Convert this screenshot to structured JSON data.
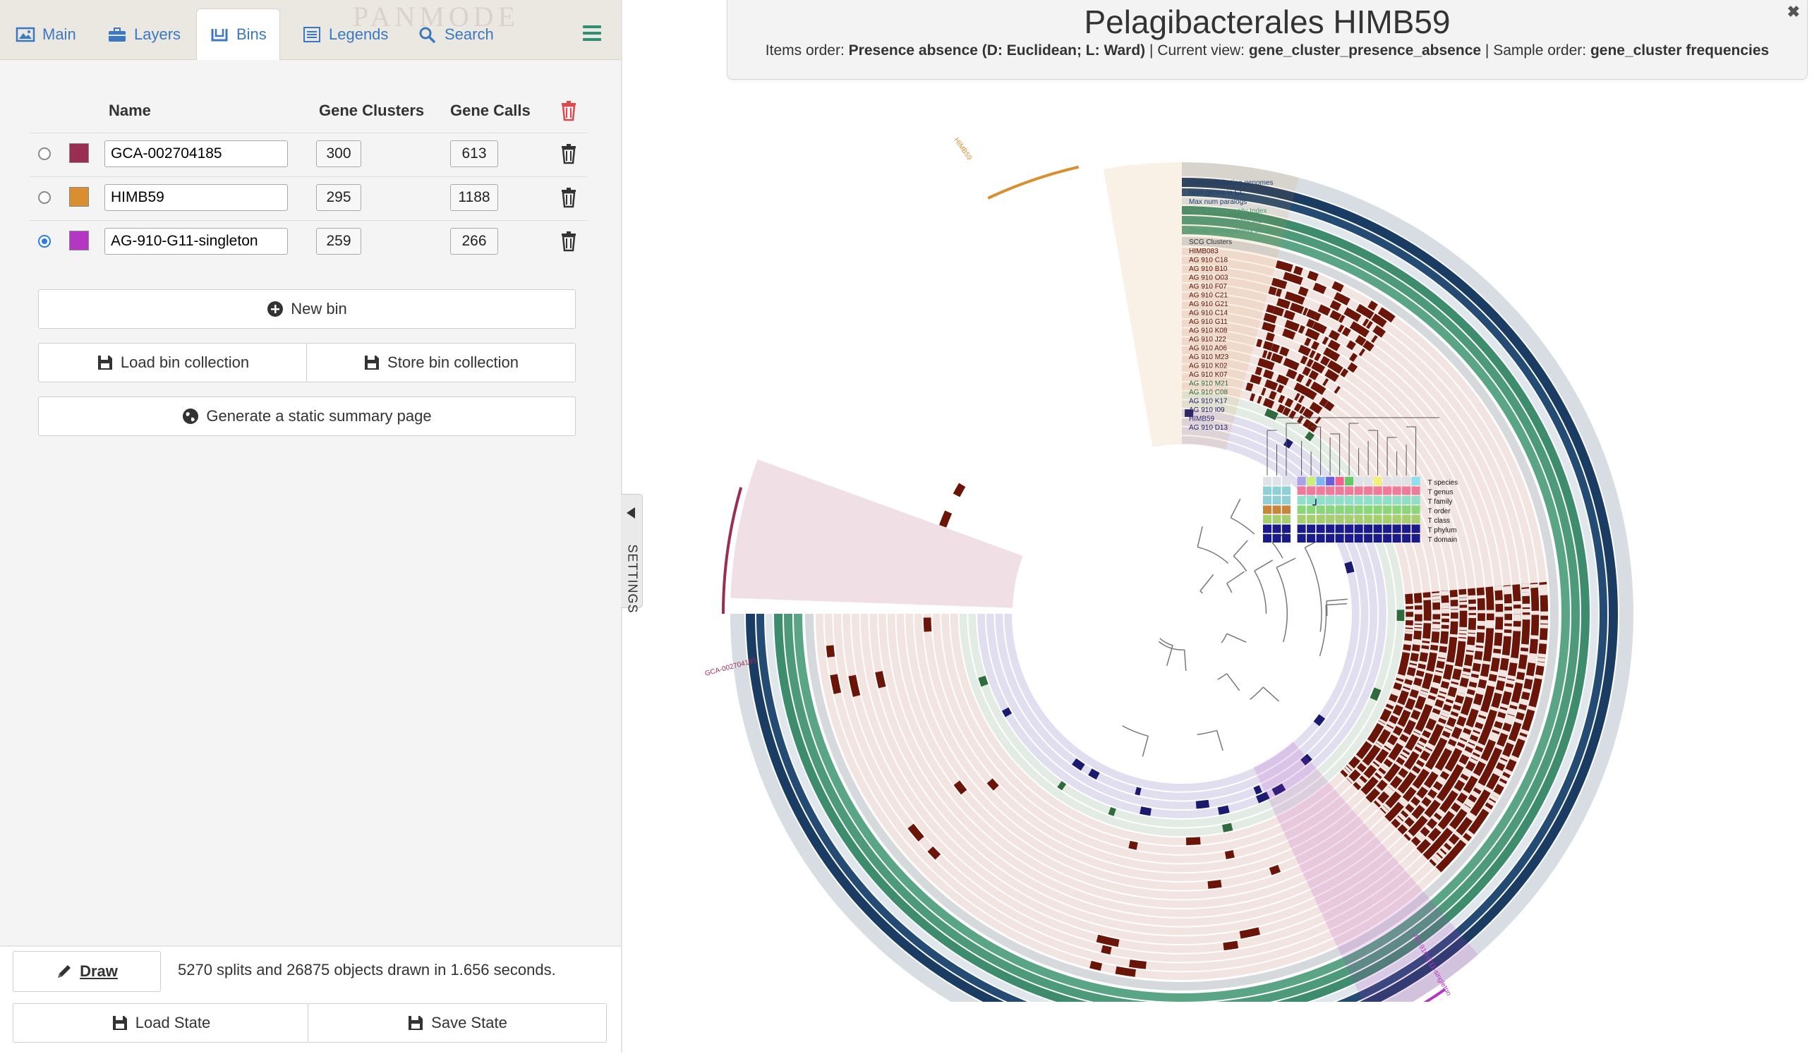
{
  "tabs": [
    {
      "label": "Main",
      "icon": "image-icon"
    },
    {
      "label": "Layers",
      "icon": "briefcase-icon"
    },
    {
      "label": "Bins",
      "icon": "bins-icon",
      "active": true
    },
    {
      "label": "Legends",
      "icon": "list-icon"
    },
    {
      "label": "Search",
      "icon": "search-icon"
    }
  ],
  "brand_watermark": "PANMODE",
  "bins_table": {
    "headers": {
      "name": "Name",
      "gene_clusters": "Gene Clusters",
      "gene_calls": "Gene Calls"
    },
    "rows": [
      {
        "name": "GCA-002704185",
        "color": "#9a2d52",
        "gene_clusters": "300",
        "gene_calls": "613",
        "selected": false
      },
      {
        "name": "HIMB59",
        "color": "#d98f30",
        "gene_clusters": "295",
        "gene_calls": "1188",
        "selected": false
      },
      {
        "name": "AG-910-G11-singleton",
        "color": "#b436c2",
        "gene_clusters": "259",
        "gene_calls": "266",
        "selected": true
      }
    ]
  },
  "buttons": {
    "new_bin": "New bin",
    "load_collection": "Load bin collection",
    "store_collection": "Store bin collection",
    "static_summary": "Generate a static summary page",
    "draw": "Draw",
    "load_state": "Load State",
    "save_state": "Save State"
  },
  "status": "5270 splits and 26875 objects drawn in 1.656 seconds.",
  "settings_label": "SETTINGS",
  "title": {
    "main": "Pelagibacterales HIMB59",
    "items_order_label": "Items order:",
    "items_order_value": "Presence absence (D: Euclidean; L: Ward)",
    "current_view_label": "Current view:",
    "current_view_value": "gene_cluster_presence_absence",
    "sample_order_label": "Sample order:",
    "sample_order_value": "gene_cluster frequencies"
  },
  "plot": {
    "layer_labels": [
      {
        "text": "Num contributing genomes",
        "color": "#1f3d6e"
      },
      {
        "text": "Num genes in GC",
        "color": "#1f3d6e"
      },
      {
        "text": "Max num paralogs",
        "color": "#1f3d6e"
      },
      {
        "text": "Geo. Homogeneity Index",
        "color": "#4f9a7a"
      },
      {
        "text": "Func. Homogeneity Index",
        "color": "#4f9a7a"
      },
      {
        "text": "Comb. Homogeneity Index",
        "color": "#4f9a7a"
      },
      {
        "text": "SCG Clusters",
        "color": "#333333"
      },
      {
        "text": "HIMB083",
        "color": "#5a1508"
      },
      {
        "text": "AG 910 C18",
        "color": "#5a1508"
      },
      {
        "text": "AG 910 B10",
        "color": "#5a1508"
      },
      {
        "text": "AG 910 O03",
        "color": "#5a1508"
      },
      {
        "text": "AG 910 F07",
        "color": "#5a1508"
      },
      {
        "text": "AG 910 C21",
        "color": "#5a1508"
      },
      {
        "text": "AG 910 G21",
        "color": "#5a1508"
      },
      {
        "text": "AG 910 C14",
        "color": "#5a1508"
      },
      {
        "text": "AG 910 G11",
        "color": "#5a1508"
      },
      {
        "text": "AG 910 K08",
        "color": "#5a1508"
      },
      {
        "text": "AG 910 J22",
        "color": "#5a1508"
      },
      {
        "text": "AG 910 A06",
        "color": "#5a1508"
      },
      {
        "text": "AG 910 M23",
        "color": "#5a1508"
      },
      {
        "text": "AG 910 K02",
        "color": "#5a1508"
      },
      {
        "text": "AG 910 K07",
        "color": "#5a1508"
      },
      {
        "text": "AG 910 M21",
        "color": "#2f6b3d"
      },
      {
        "text": "AG 910 C08",
        "color": "#2f6b3d"
      },
      {
        "text": "AG 910 K17",
        "color": "#1a1a6e"
      },
      {
        "text": "AG 910 I09",
        "color": "#1a1a6e"
      },
      {
        "text": "HIMB59",
        "color": "#1a1a6e"
      },
      {
        "text": "AG 910 D13",
        "color": "#1a1a6e"
      }
    ],
    "tax_labels": [
      "T species",
      "T genus",
      "T family",
      "T order",
      "T class",
      "T phylum",
      "T domain"
    ],
    "bin_labels": [
      {
        "text": "HIMB59",
        "color": "#d98f30"
      },
      {
        "text": "GCA-002704185",
        "color": "#9a2d52"
      },
      {
        "text": "AG-910-G11-singleton",
        "color": "#b436c2"
      }
    ]
  }
}
